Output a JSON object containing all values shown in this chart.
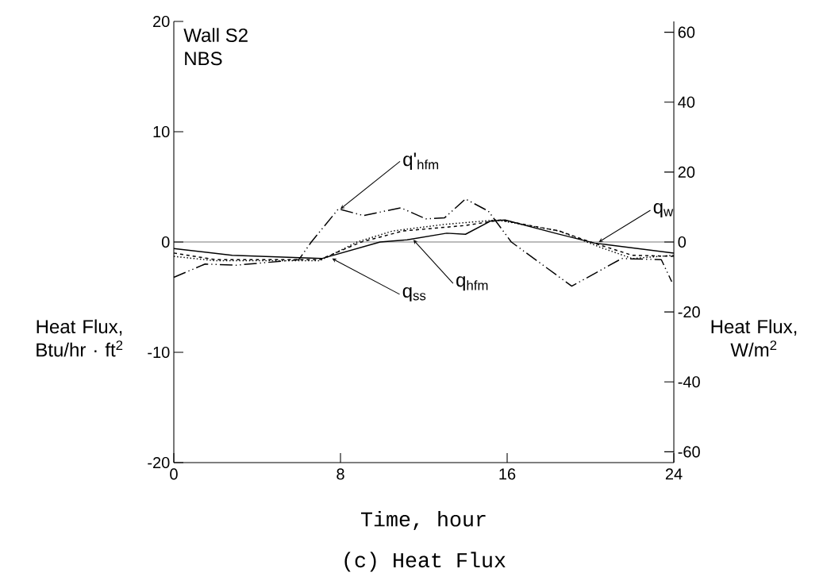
{
  "chart_data": {
    "type": "line",
    "title": "(c)  Heat Flux",
    "xlabel": "Time, hour",
    "ylabel": "Heat Flux, Btu/hr · ft$^{2}$",
    "y2label": "Heat Flux, W/m$^{2}$",
    "xlim": [
      0,
      24
    ],
    "xticks": [
      0,
      8,
      16,
      24
    ],
    "ylim": [
      -20,
      20
    ],
    "yticks": [
      -20,
      -10,
      0,
      10,
      20
    ],
    "y2lim": [
      -63.09,
      63.09
    ],
    "y2ticks": [
      -60,
      -40,
      -20,
      0,
      20,
      40,
      60
    ],
    "ref_lines": [
      {
        "axis": "y",
        "value": 0,
        "label": null
      }
    ],
    "series": [
      {
        "color": "#000000",
        "line_style": "dashdotdotted",
        "x": [
          0,
          1.5,
          3,
          6,
          6.6,
          7.9,
          9.1,
          10.9,
          12.1,
          13,
          14,
          15.1,
          16.2,
          19.1,
          21.5,
          23.4,
          23.9
        ],
        "values": [
          -3.2,
          -2,
          -2.1,
          -1.6,
          0,
          3.0,
          2.4,
          3.1,
          2.1,
          2.2,
          3.9,
          2.8,
          0,
          -4.0,
          -1.5,
          -1.6,
          -3.6
        ]
      },
      {
        "color": "#000000",
        "line_style": "solid",
        "x": [
          0,
          2.8,
          7.1,
          9.9,
          11.2,
          13.1,
          14,
          15.2,
          15.9,
          18.3,
          20.2,
          24
        ],
        "values": [
          -0.6,
          -1.2,
          -1.5,
          0,
          0.2,
          0.8,
          0.7,
          1.9,
          2.0,
          0.8,
          -0.1,
          -1.0
        ]
      },
      {
        "color": "#000000",
        "line_style": "dashed",
        "x": [
          0,
          2,
          7,
          9,
          11,
          14,
          15.7,
          18.5,
          20,
          22,
          24
        ],
        "values": [
          -1.0,
          -1.6,
          -1.6,
          0,
          1.0,
          1.5,
          2.0,
          1.0,
          0,
          -1.2,
          -1.3
        ]
      },
      {
        "color": "#000000",
        "line_style": "dotted",
        "x": [
          0,
          2,
          7,
          8.8,
          10.5,
          13,
          15.5,
          18.5,
          20.5,
          22,
          24
        ],
        "values": [
          -1.3,
          -1.7,
          -1.7,
          0,
          1.0,
          1.6,
          2.0,
          1.0,
          -0.5,
          -1.5,
          -1.2
        ]
      }
    ],
    "annotations": [
      "Wall S2",
      "NBS",
      {
        "text": "q'$_{hfm}$",
        "x": 8,
        "y": 3
      },
      {
        "text": "q$_{hfm}$",
        "x": 11.5,
        "y": 0.2
      },
      {
        "text": "q$_{ss}$",
        "x": 7.6,
        "y": -1.5
      },
      {
        "text": "q$_{w}$",
        "x": 20.4,
        "y": 0
      }
    ],
    "marker": "none"
  }
}
